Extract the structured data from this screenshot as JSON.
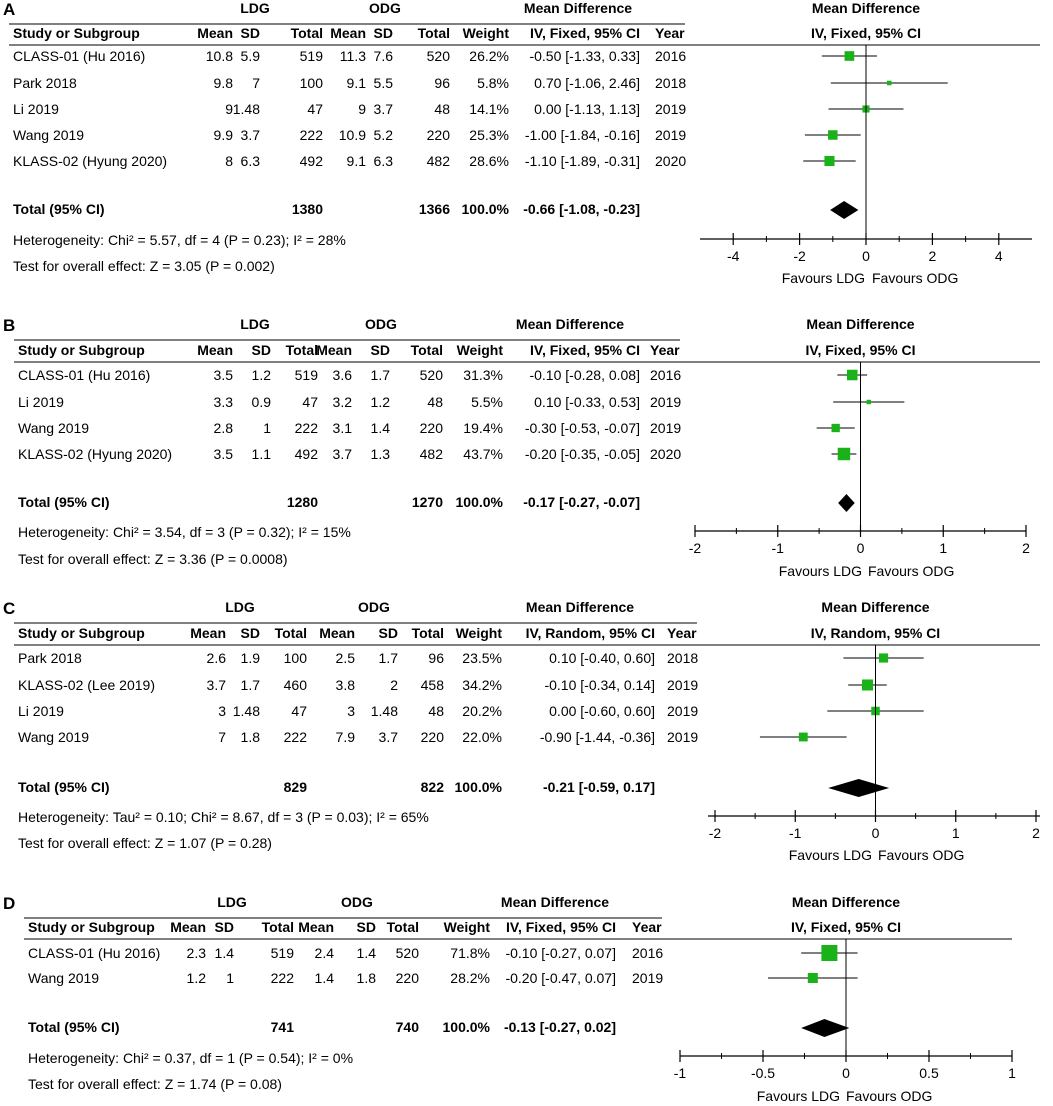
{
  "chart_data": [
    {
      "type": "forest",
      "panel_label": "A",
      "group1": "LDG",
      "group2": "ODG",
      "effect_header": "Mean Difference",
      "method": "IV, Fixed, 95% CI",
      "col_headers": [
        "Study or Subgroup",
        "Mean",
        "SD",
        "Total",
        "Mean",
        "SD",
        "Total",
        "Weight",
        "IV, Fixed, 95% CI",
        "Year"
      ],
      "studies": [
        {
          "name": "CLASS-01 (Hu 2016)",
          "m1": "10.8",
          "sd1": "5.9",
          "n1": "519",
          "m2": "11.3",
          "sd2": "7.6",
          "n2": "520",
          "weight": "26.2%",
          "ci_text": "-0.50 [-1.33, 0.33]",
          "year": "2016",
          "md": -0.5,
          "lo": -1.33,
          "hi": 0.33,
          "w": 26.2
        },
        {
          "name": "Park 2018",
          "m1": "9.8",
          "sd1": "7",
          "n1": "100",
          "m2": "9.1",
          "sd2": "5.5",
          "n2": "96",
          "weight": "5.8%",
          "ci_text": "0.70 [-1.06, 2.46]",
          "year": "2018",
          "md": 0.7,
          "lo": -1.06,
          "hi": 2.46,
          "w": 5.8
        },
        {
          "name": "Li 2019",
          "m1": "9",
          "sd1": "1.48",
          "n1": "47",
          "m2": "9",
          "sd2": "3.7",
          "n2": "48",
          "weight": "14.1%",
          "ci_text": "0.00 [-1.13, 1.13]",
          "year": "2019",
          "md": 0.0,
          "lo": -1.13,
          "hi": 1.13,
          "w": 14.1
        },
        {
          "name": "Wang 2019",
          "m1": "9.9",
          "sd1": "3.7",
          "n1": "222",
          "m2": "10.9",
          "sd2": "5.2",
          "n2": "220",
          "weight": "25.3%",
          "ci_text": "-1.00 [-1.84, -0.16]",
          "year": "2019",
          "md": -1.0,
          "lo": -1.84,
          "hi": -0.16,
          "w": 25.3
        },
        {
          "name": "KLASS-02 (Hyung 2020)",
          "m1": "8",
          "sd1": "6.3",
          "n1": "492",
          "m2": "9.1",
          "sd2": "6.3",
          "n2": "482",
          "weight": "28.6%",
          "ci_text": "-1.10 [-1.89, -0.31]",
          "year": "2020",
          "md": -1.1,
          "lo": -1.89,
          "hi": -0.31,
          "w": 28.6
        }
      ],
      "total": {
        "label": "Total (95% CI)",
        "n1": "1380",
        "n2": "1366",
        "weight": "100.0%",
        "ci_text": "-0.66 [-1.08, -0.23]",
        "md": -0.66,
        "lo": -1.08,
        "hi": -0.23
      },
      "heterogeneity": "Heterogeneity: Chi² = 5.57, df = 4 (P = 0.23); I² = 28%",
      "overall_test": "Test for overall effect: Z = 3.05 (P = 0.002)",
      "axis": {
        "min": -5,
        "max": 5,
        "ticks": [
          -4,
          -2,
          0,
          2,
          4
        ],
        "tick_labels": [
          "-4",
          "-2",
          "0",
          "2",
          "4"
        ]
      },
      "favours_left": "Favours LDG",
      "favours_right": "Favours ODG"
    },
    {
      "type": "forest",
      "panel_label": "B",
      "group1": "LDG",
      "group2": "ODG",
      "effect_header": "Mean Difference",
      "method": "IV, Fixed, 95% CI",
      "col_headers": [
        "Study or Subgroup",
        "Mean",
        "SD",
        "Total",
        "Mean",
        "SD",
        "Total",
        "Weight",
        "IV, Fixed, 95% CI",
        "Year"
      ],
      "studies": [
        {
          "name": "CLASS-01 (Hu 2016)",
          "m1": "3.5",
          "sd1": "1.2",
          "n1": "519",
          "m2": "3.6",
          "sd2": "1.7",
          "n2": "520",
          "weight": "31.3%",
          "ci_text": "-0.10 [-0.28, 0.08]",
          "year": "2016",
          "md": -0.1,
          "lo": -0.28,
          "hi": 0.08,
          "w": 31.3
        },
        {
          "name": "Li 2019",
          "m1": "3.3",
          "sd1": "0.9",
          "n1": "47",
          "m2": "3.2",
          "sd2": "1.2",
          "n2": "48",
          "weight": "5.5%",
          "ci_text": "0.10 [-0.33, 0.53]",
          "year": "2019",
          "md": 0.1,
          "lo": -0.33,
          "hi": 0.53,
          "w": 5.5
        },
        {
          "name": "Wang 2019",
          "m1": "2.8",
          "sd1": "1",
          "n1": "222",
          "m2": "3.1",
          "sd2": "1.4",
          "n2": "220",
          "weight": "19.4%",
          "ci_text": "-0.30 [-0.53, -0.07]",
          "year": "2019",
          "md": -0.3,
          "lo": -0.53,
          "hi": -0.07,
          "w": 19.4
        },
        {
          "name": "KLASS-02 (Hyung 2020)",
          "m1": "3.5",
          "sd1": "1.1",
          "n1": "492",
          "m2": "3.7",
          "sd2": "1.3",
          "n2": "482",
          "weight": "43.7%",
          "ci_text": "-0.20 [-0.35, -0.05]",
          "year": "2020",
          "md": -0.2,
          "lo": -0.35,
          "hi": -0.05,
          "w": 43.7
        }
      ],
      "total": {
        "label": "Total (95% CI)",
        "n1": "1280",
        "n2": "1270",
        "weight": "100.0%",
        "ci_text": "-0.17 [-0.27, -0.07]",
        "md": -0.17,
        "lo": -0.27,
        "hi": -0.07
      },
      "heterogeneity": "Heterogeneity: Chi² = 3.54, df = 3 (P = 0.32); I² = 15%",
      "overall_test": "Test for overall effect: Z = 3.36 (P = 0.0008)",
      "axis": {
        "min": -2,
        "max": 2,
        "ticks": [
          -2,
          -1,
          0,
          1,
          2
        ],
        "tick_labels": [
          "-2",
          "-1",
          "0",
          "1",
          "2"
        ]
      },
      "favours_left": "Favours LDG",
      "favours_right": "Favours ODG"
    },
    {
      "type": "forest",
      "panel_label": "C",
      "group1": "LDG",
      "group2": "ODG",
      "effect_header": "Mean Difference",
      "method": "IV, Random, 95% CI",
      "col_headers": [
        "Study or Subgroup",
        "Mean",
        "SD",
        "Total",
        "Mean",
        "SD",
        "Total",
        "Weight",
        "IV, Random, 95% CI",
        "Year"
      ],
      "studies": [
        {
          "name": "Park 2018",
          "m1": "2.6",
          "sd1": "1.9",
          "n1": "100",
          "m2": "2.5",
          "sd2": "1.7",
          "n2": "96",
          "weight": "23.5%",
          "ci_text": "0.10 [-0.40, 0.60]",
          "year": "2018",
          "md": 0.1,
          "lo": -0.4,
          "hi": 0.6,
          "w": 23.5
        },
        {
          "name": "KLASS-02 (Lee 2019)",
          "m1": "3.7",
          "sd1": "1.7",
          "n1": "460",
          "m2": "3.8",
          "sd2": "2",
          "n2": "458",
          "weight": "34.2%",
          "ci_text": "-0.10 [-0.34, 0.14]",
          "year": "2019",
          "md": -0.1,
          "lo": -0.34,
          "hi": 0.14,
          "w": 34.2
        },
        {
          "name": "Li 2019",
          "m1": "3",
          "sd1": "1.48",
          "n1": "47",
          "m2": "3",
          "sd2": "1.48",
          "n2": "48",
          "weight": "20.2%",
          "ci_text": "0.00 [-0.60, 0.60]",
          "year": "2019",
          "md": 0.0,
          "lo": -0.6,
          "hi": 0.6,
          "w": 20.2
        },
        {
          "name": "Wang 2019",
          "m1": "7",
          "sd1": "1.8",
          "n1": "222",
          "m2": "7.9",
          "sd2": "3.7",
          "n2": "220",
          "weight": "22.0%",
          "ci_text": "-0.90 [-1.44, -0.36]",
          "year": "2019",
          "md": -0.9,
          "lo": -1.44,
          "hi": -0.36,
          "w": 22.0
        }
      ],
      "total": {
        "label": "Total (95% CI)",
        "n1": "829",
        "n2": "822",
        "weight": "100.0%",
        "ci_text": "-0.21 [-0.59, 0.17]",
        "md": -0.21,
        "lo": -0.59,
        "hi": 0.17
      },
      "heterogeneity": "Heterogeneity: Tau² = 0.10; Chi² = 8.67, df = 3 (P = 0.03); I² = 65%",
      "overall_test": "Test for overall effect: Z = 1.07 (P = 0.28)",
      "axis": {
        "min": -2,
        "max": 2,
        "ticks": [
          -2,
          -1,
          0,
          1,
          2
        ],
        "tick_labels": [
          "-2",
          "-1",
          "0",
          "1",
          "2"
        ]
      },
      "favours_left": "Favours LDG",
      "favours_right": "Favours ODG"
    },
    {
      "type": "forest",
      "panel_label": "D",
      "group1": "LDG",
      "group2": "ODG",
      "effect_header": "Mean Difference",
      "method": "IV, Fixed, 95% CI",
      "col_headers": [
        "Study or Subgroup",
        "Mean",
        "SD",
        "Total",
        "Mean",
        "SD",
        "Total",
        "Weight",
        "IV, Fixed, 95% CI",
        "Year"
      ],
      "studies": [
        {
          "name": "CLASS-01 (Hu 2016)",
          "m1": "2.3",
          "sd1": "1.4",
          "n1": "519",
          "m2": "2.4",
          "sd2": "1.4",
          "n2": "520",
          "weight": "71.8%",
          "ci_text": "-0.10 [-0.27, 0.07]",
          "year": "2016",
          "md": -0.1,
          "lo": -0.27,
          "hi": 0.07,
          "w": 71.8
        },
        {
          "name": "Wang 2019",
          "m1": "1.2",
          "sd1": "1",
          "n1": "222",
          "m2": "1.4",
          "sd2": "1.8",
          "n2": "220",
          "weight": "28.2%",
          "ci_text": "-0.20 [-0.47, 0.07]",
          "year": "2019",
          "md": -0.2,
          "lo": -0.47,
          "hi": 0.07,
          "w": 28.2
        }
      ],
      "total": {
        "label": "Total (95% CI)",
        "n1": "741",
        "n2": "740",
        "weight": "100.0%",
        "ci_text": "-0.13 [-0.27, 0.02]",
        "md": -0.13,
        "lo": -0.27,
        "hi": 0.02
      },
      "heterogeneity": "Heterogeneity: Chi² = 0.37, df = 1 (P = 0.54); I² = 0%",
      "overall_test": "Test for overall effect: Z = 1.74 (P = 0.08)",
      "axis": {
        "min": -1,
        "max": 1,
        "ticks": [
          -1,
          -0.5,
          0,
          0.5,
          1
        ],
        "tick_labels": [
          "-1",
          "-0.5",
          "0",
          "0.5",
          "1"
        ]
      },
      "favours_left": "Favours LDG",
      "favours_right": "Favours ODG"
    }
  ],
  "colors": {
    "marker": "#19b319",
    "ink": "#000000"
  }
}
